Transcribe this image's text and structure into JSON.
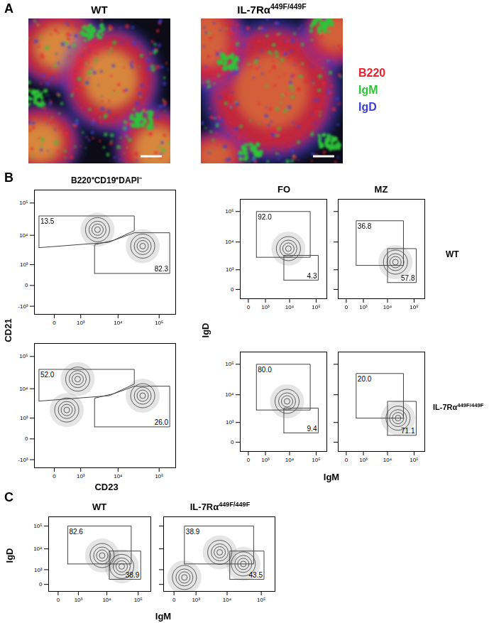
{
  "panel_A": {
    "letter": "A",
    "titles": [
      "WT",
      {
        "text": "IL-7Rα",
        "sup": "449F/449F"
      }
    ],
    "channels": [
      {
        "name": "B220",
        "color": "#e8232d"
      },
      {
        "name": "IgM",
        "color": "#2ec43a"
      },
      {
        "name": "IgD",
        "color": "#3b3fd6"
      }
    ]
  },
  "panel_B": {
    "letter": "B",
    "header": "B220⁺CD19⁺DAPI⁻",
    "column_titles": [
      "FO",
      "MZ"
    ],
    "row_labels": [
      "WT",
      {
        "text": "IL-7Rα",
        "sup": "449F/449F"
      }
    ],
    "left_x_label": "CD23",
    "left_y_label": "CD21",
    "right_x_label": "IgM",
    "right_y_label": "IgD"
  },
  "panel_C": {
    "letter": "C",
    "titles": [
      "WT",
      {
        "text": "IL-7Rα",
        "sup": "449F/449F"
      }
    ],
    "x_label": "IgM",
    "y_label": "IgD"
  },
  "chart_data": [
    {
      "type": "contour",
      "log": true,
      "xlim": [
        -600,
        250000
      ],
      "ylim": [
        -2000,
        250000
      ],
      "xticks": [
        0,
        {
          "value": 1000,
          "label": "10³"
        },
        {
          "value": 10000,
          "label": "10⁴"
        },
        {
          "value": 100000,
          "label": "10⁵"
        }
      ],
      "yticks": [
        {
          "value": -1000,
          "label": "-10³"
        },
        0,
        {
          "value": 1000,
          "label": "10³"
        },
        {
          "value": 10000,
          "label": "10⁴"
        },
        {
          "value": 100000,
          "label": "10⁵"
        }
      ],
      "gates": [
        {
          "value": 13.5,
          "points": [
            [
              -400,
              4000
            ],
            [
              -400,
              40000
            ],
            [
              25000,
              40000
            ],
            [
              25000,
              14000
            ],
            [
              6000,
              6000
            ]
          ]
        },
        {
          "value": 82.3,
          "points": [
            [
              2500,
              400
            ],
            [
              2500,
              5000
            ],
            [
              8000,
              7000
            ],
            [
              25000,
              12000
            ],
            [
              180000,
              12000
            ],
            [
              180000,
              400
            ]
          ]
        }
      ],
      "populations": [
        {
          "x": 40000,
          "y": 4500
        },
        {
          "x": 3000,
          "y": 15000
        }
      ]
    },
    {
      "type": "contour",
      "log": true,
      "xlim": [
        -300,
        250000
      ],
      "ylim": [
        -300,
        250000
      ],
      "xticks": [
        0,
        {
          "value": 1000,
          "label": "10³"
        },
        {
          "value": 10000,
          "label": "10⁴"
        },
        {
          "value": 100000,
          "label": "10⁵"
        }
      ],
      "yticks": [
        0,
        {
          "value": 1000,
          "label": "10³"
        },
        {
          "value": 10000,
          "label": "10⁴"
        },
        {
          "value": 100000,
          "label": "10⁵"
        }
      ],
      "gates": [
        {
          "value": 92,
          "label": "92.0",
          "points": [
            [
              300,
              3000
            ],
            [
              300,
              100000
            ],
            [
              60000,
              100000
            ],
            [
              60000,
              3000
            ]
          ]
        },
        {
          "value": 4.3,
          "points": [
            [
              6000,
              300
            ],
            [
              6000,
              3500
            ],
            [
              120000,
              3500
            ],
            [
              120000,
              300
            ]
          ]
        }
      ],
      "populations": [
        {
          "x": 9000,
          "y": 6000
        }
      ]
    },
    {
      "type": "contour",
      "log": true,
      "tick_labels": "x",
      "xlim": [
        -300,
        250000
      ],
      "ylim": [
        -300,
        250000
      ],
      "xticks": [
        0,
        {
          "value": 1000,
          "label": "10³"
        },
        {
          "value": 10000,
          "label": "10⁴"
        },
        {
          "value": 100000,
          "label": "10⁵"
        }
      ],
      "yticks": [
        0,
        {
          "value": 1000,
          "label": "10³"
        },
        {
          "value": 10000,
          "label": "10⁴"
        },
        {
          "value": 100000,
          "label": "10⁵"
        }
      ],
      "gates": [
        {
          "value": 36.8,
          "points": [
            [
              400,
              1500
            ],
            [
              400,
              50000
            ],
            [
              40000,
              50000
            ],
            [
              40000,
              1500
            ]
          ]
        },
        {
          "value": 57.8,
          "points": [
            [
              10000,
              200
            ],
            [
              10000,
              6000
            ],
            [
              120000,
              6000
            ],
            [
              120000,
              200
            ]
          ]
        }
      ],
      "populations": [
        {
          "x": 20000,
          "y": 2000
        }
      ]
    },
    {
      "type": "contour",
      "log": true,
      "xlim": [
        -600,
        250000
      ],
      "ylim": [
        -2000,
        250000
      ],
      "xticks": [
        0,
        {
          "value": 1000,
          "label": "10³"
        },
        {
          "value": 10000,
          "label": "10⁴"
        },
        {
          "value": 100000,
          "label": "10⁵"
        }
      ],
      "yticks": [
        {
          "value": -1000,
          "label": "-10³"
        },
        0,
        {
          "value": 1000,
          "label": "10³"
        },
        {
          "value": 10000,
          "label": "10⁴"
        },
        {
          "value": 100000,
          "label": "10⁵"
        }
      ],
      "gates": [
        {
          "value": 52,
          "label": "52.0",
          "points": [
            [
              -400,
              4000
            ],
            [
              -400,
              40000
            ],
            [
              25000,
              40000
            ],
            [
              25000,
              14000
            ],
            [
              6000,
              6000
            ]
          ]
        },
        {
          "value": 26,
          "label": "26.0",
          "points": [
            [
              2500,
              400
            ],
            [
              2500,
              5000
            ],
            [
              8000,
              7000
            ],
            [
              25000,
              12000
            ],
            [
              180000,
              12000
            ],
            [
              180000,
              400
            ]
          ]
        }
      ],
      "populations": [
        {
          "x": 800,
          "y": 20000
        },
        {
          "x": 40000,
          "y": 6000
        },
        {
          "x": 300,
          "y": 2000
        }
      ]
    },
    {
      "type": "contour",
      "log": true,
      "xlim": [
        -300,
        250000
      ],
      "ylim": [
        -300,
        250000
      ],
      "xticks": [
        0,
        {
          "value": 1000,
          "label": "10³"
        },
        {
          "value": 10000,
          "label": "10⁴"
        },
        {
          "value": 100000,
          "label": "10⁵"
        }
      ],
      "yticks": [
        0,
        {
          "value": 1000,
          "label": "10³"
        },
        {
          "value": 10000,
          "label": "10⁴"
        },
        {
          "value": 100000,
          "label": "10⁵"
        }
      ],
      "gates": [
        {
          "value": 80,
          "label": "80.0",
          "points": [
            [
              300,
              3000
            ],
            [
              300,
              100000
            ],
            [
              60000,
              100000
            ],
            [
              60000,
              3000
            ]
          ]
        },
        {
          "value": 9.4,
          "points": [
            [
              6000,
              300
            ],
            [
              6000,
              3500
            ],
            [
              120000,
              3500
            ],
            [
              120000,
              300
            ]
          ]
        }
      ],
      "populations": [
        {
          "x": 8000,
          "y": 6000
        }
      ]
    },
    {
      "type": "contour",
      "log": true,
      "tick_labels": "x",
      "xlim": [
        -300,
        250000
      ],
      "ylim": [
        -300,
        250000
      ],
      "xticks": [
        0,
        {
          "value": 1000,
          "label": "10³"
        },
        {
          "value": 10000,
          "label": "10⁴"
        },
        {
          "value": 100000,
          "label": "10⁵"
        }
      ],
      "yticks": [
        0,
        {
          "value": 1000,
          "label": "10³"
        },
        {
          "value": 10000,
          "label": "10⁴"
        },
        {
          "value": 100000,
          "label": "10⁵"
        }
      ],
      "gates": [
        {
          "value": 20,
          "label": "20.0",
          "points": [
            [
              400,
              1500
            ],
            [
              400,
              50000
            ],
            [
              40000,
              50000
            ],
            [
              40000,
              1500
            ]
          ]
        },
        {
          "value": 71.1,
          "points": [
            [
              10000,
              200
            ],
            [
              10000,
              6000
            ],
            [
              120000,
              6000
            ],
            [
              120000,
              200
            ]
          ]
        }
      ],
      "populations": [
        {
          "x": 25000,
          "y": 1500
        }
      ]
    },
    {
      "type": "contour",
      "log": true,
      "xlim": [
        -300,
        250000
      ],
      "ylim": [
        -300,
        250000
      ],
      "xticks": [
        0,
        {
          "value": 1000,
          "label": "10³"
        },
        {
          "value": 10000,
          "label": "10⁴"
        },
        {
          "value": 100000,
          "label": "10⁵"
        }
      ],
      "yticks": [
        0,
        {
          "value": 1000,
          "label": "10³"
        },
        {
          "value": 10000,
          "label": "10⁴"
        },
        {
          "value": 100000,
          "label": "10⁵"
        }
      ],
      "gates": [
        {
          "value": 82.6,
          "points": [
            [
              300,
              2000
            ],
            [
              300,
              100000
            ],
            [
              60000,
              100000
            ],
            [
              60000,
              2000
            ]
          ]
        },
        {
          "value": 38.9,
          "points": [
            [
              12000,
              200
            ],
            [
              12000,
              8000
            ],
            [
              120000,
              8000
            ],
            [
              120000,
              200
            ]
          ]
        }
      ],
      "populations": [
        {
          "x": 7000,
          "y": 5000
        },
        {
          "x": 30000,
          "y": 1500
        }
      ]
    },
    {
      "type": "contour",
      "log": true,
      "tick_labels": "x",
      "xlim": [
        -300,
        250000
      ],
      "ylim": [
        -300,
        250000
      ],
      "xticks": [
        0,
        {
          "value": 1000,
          "label": "10³"
        },
        {
          "value": 10000,
          "label": "10⁴"
        },
        {
          "value": 100000,
          "label": "10⁵"
        }
      ],
      "yticks": [
        0,
        {
          "value": 1000,
          "label": "10³"
        },
        {
          "value": 10000,
          "label": "10⁴"
        },
        {
          "value": 100000,
          "label": "10⁵"
        }
      ],
      "gates": [
        {
          "value": 38.9,
          "points": [
            [
              300,
              2000
            ],
            [
              300,
              100000
            ],
            [
              60000,
              100000
            ],
            [
              60000,
              2000
            ]
          ]
        },
        {
          "value": 43.5,
          "points": [
            [
              12000,
              200
            ],
            [
              12000,
              8000
            ],
            [
              120000,
              8000
            ],
            [
              120000,
              200
            ]
          ]
        }
      ],
      "populations": [
        {
          "x": 30000,
          "y": 2000
        },
        {
          "x": 6000,
          "y": 7000
        },
        {
          "x": 300,
          "y": 300
        }
      ]
    }
  ]
}
